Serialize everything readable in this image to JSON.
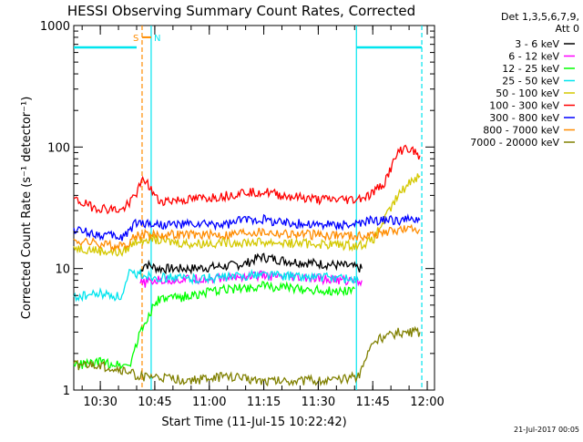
{
  "chart_data": {
    "type": "line",
    "title": "HESSI Observing Summary Count Rates, Corrected",
    "xlabel": "Start Time (11-Jul-15 10:22:42)",
    "ylabel": "Corrected Count Rate (s⁻¹ detector⁻¹)",
    "yscale": "log",
    "ylim": [
      1,
      1000
    ],
    "xlim": [
      "10:22:42",
      "12:02:00"
    ],
    "x_tick_labels": [
      "10:30",
      "10:45",
      "11:00",
      "11:15",
      "11:30",
      "11:45",
      "12:00"
    ],
    "y_tick_labels": [
      "1",
      "10",
      "100",
      "1000"
    ],
    "legend_header": [
      "Det 1,3,5,6,7,9,",
      "Att 0"
    ],
    "legend_position": "right",
    "date_stamp": "21-Jul-2017 00:05",
    "grid": false,
    "markers": [
      {
        "label": "S",
        "time": "10:41:30",
        "color": "#ff8c00",
        "style": "dashed"
      },
      {
        "label": "N",
        "time": "10:44:00",
        "color": "#00e5ee",
        "style": "solid"
      },
      {
        "label": "",
        "time": "11:40:30",
        "color": "#00e5ee",
        "style": "solid"
      },
      {
        "label": "",
        "time": "11:58:30",
        "color": "#00e5ee",
        "style": "dashed"
      }
    ],
    "night_bars": [
      {
        "start": "10:22:42",
        "end": "10:40:00",
        "level": 660
      },
      {
        "start": "11:40:30",
        "end": "11:58:30",
        "level": 660
      }
    ],
    "saa_bar": {
      "start": "10:41:30",
      "end": "10:44:00",
      "level": 800
    },
    "series": [
      {
        "name": "3 - 6 keV",
        "color": "#000000",
        "points": [
          [
            "10:41:00",
            9
          ],
          [
            "10:42:00",
            11
          ],
          [
            "10:46:00",
            10
          ],
          [
            "10:55:00",
            10
          ],
          [
            "11:05:00",
            10.5
          ],
          [
            "11:10:00",
            11
          ],
          [
            "11:14:00",
            12.5
          ],
          [
            "11:18:00",
            12
          ],
          [
            "11:22:00",
            11.5
          ],
          [
            "11:30:00",
            11
          ],
          [
            "11:38:00",
            10.5
          ],
          [
            "11:42:00",
            10
          ]
        ]
      },
      {
        "name": "6 - 12 keV",
        "color": "#ff00ff",
        "points": [
          [
            "10:41:00",
            7.5
          ],
          [
            "10:46:00",
            8
          ],
          [
            "10:55:00",
            8.2
          ],
          [
            "11:05:00",
            8.4
          ],
          [
            "11:14:00",
            8.8
          ],
          [
            "11:20:00",
            8.5
          ],
          [
            "11:30:00",
            8.2
          ],
          [
            "11:38:00",
            8
          ],
          [
            "11:42:00",
            8
          ]
        ]
      },
      {
        "name": "12 - 25 keV",
        "color": "#00ff00",
        "points": [
          [
            "10:22:42",
            1.6
          ],
          [
            "10:30:00",
            1.7
          ],
          [
            "10:38:00",
            1.6
          ],
          [
            "10:41:00",
            3
          ],
          [
            "10:44:00",
            4.5
          ],
          [
            "10:46:00",
            5.5
          ],
          [
            "10:55:00",
            6
          ],
          [
            "11:05:00",
            6.8
          ],
          [
            "11:15:00",
            7.2
          ],
          [
            "11:25:00",
            6.8
          ],
          [
            "11:35:00",
            6.5
          ],
          [
            "11:40:00",
            6.8
          ]
        ]
      },
      {
        "name": "25 - 50 keV",
        "color": "#00e5ee",
        "points": [
          [
            "10:22:42",
            5.8
          ],
          [
            "10:30:00",
            6.2
          ],
          [
            "10:36:00",
            5.8
          ],
          [
            "10:38:00",
            9
          ],
          [
            "10:41:00",
            9
          ],
          [
            "10:46:00",
            8.5
          ],
          [
            "10:55:00",
            8.3
          ],
          [
            "11:05:00",
            8.5
          ],
          [
            "11:15:00",
            9
          ],
          [
            "11:25:00",
            8.6
          ],
          [
            "11:35:00",
            8.4
          ],
          [
            "11:41:00",
            8
          ]
        ]
      },
      {
        "name": "50 - 100 keV",
        "color": "#d4c800",
        "points": [
          [
            "10:22:42",
            15
          ],
          [
            "10:30:00",
            14
          ],
          [
            "10:36:00",
            13.5
          ],
          [
            "10:40:00",
            17
          ],
          [
            "10:44:00",
            18
          ],
          [
            "10:46:00",
            17
          ],
          [
            "10:55:00",
            16
          ],
          [
            "11:05:00",
            16.5
          ],
          [
            "11:15:00",
            16.5
          ],
          [
            "11:30:00",
            16
          ],
          [
            "11:41:00",
            15.5
          ],
          [
            "11:45:00",
            17
          ],
          [
            "11:52:00",
            40
          ],
          [
            "11:56:00",
            55
          ],
          [
            "11:58:00",
            58
          ]
        ]
      },
      {
        "name": "100 - 300 keV",
        "color": "#ff0000",
        "points": [
          [
            "10:22:42",
            37
          ],
          [
            "10:28:00",
            32
          ],
          [
            "10:36:00",
            30
          ],
          [
            "10:40:00",
            42
          ],
          [
            "10:42:00",
            55
          ],
          [
            "10:46:00",
            36
          ],
          [
            "10:55:00",
            37
          ],
          [
            "11:05:00",
            40
          ],
          [
            "11:10:00",
            43
          ],
          [
            "11:15:00",
            43
          ],
          [
            "11:20:00",
            40
          ],
          [
            "11:30:00",
            37
          ],
          [
            "11:40:00",
            37
          ],
          [
            "11:44:00",
            40
          ],
          [
            "11:48:00",
            50
          ],
          [
            "11:52:00",
            90
          ],
          [
            "11:54:00",
            100
          ],
          [
            "11:58:00",
            85
          ]
        ]
      },
      {
        "name": "300 - 800 keV",
        "color": "#0000ff",
        "points": [
          [
            "10:22:42",
            21
          ],
          [
            "10:30:00",
            19
          ],
          [
            "10:36:00",
            18
          ],
          [
            "10:40:00",
            24
          ],
          [
            "10:46:00",
            23
          ],
          [
            "10:55:00",
            23
          ],
          [
            "11:05:00",
            23
          ],
          [
            "11:10:00",
            25.5
          ],
          [
            "11:15:00",
            25.5
          ],
          [
            "11:20:00",
            24
          ],
          [
            "11:30:00",
            23
          ],
          [
            "11:41:00",
            23
          ],
          [
            "11:45:00",
            25
          ],
          [
            "11:52:00",
            25
          ],
          [
            "11:58:00",
            25
          ]
        ]
      },
      {
        "name": "800 - 7000 keV",
        "color": "#ff8c00",
        "points": [
          [
            "10:22:42",
            17
          ],
          [
            "10:30:00",
            16
          ],
          [
            "10:36:00",
            15
          ],
          [
            "10:40:00",
            19
          ],
          [
            "10:46:00",
            19
          ],
          [
            "10:55:00",
            19
          ],
          [
            "11:05:00",
            19
          ],
          [
            "11:10:00",
            20
          ],
          [
            "11:15:00",
            20
          ],
          [
            "11:25:00",
            19
          ],
          [
            "11:35:00",
            19
          ],
          [
            "11:41:00",
            18.5
          ],
          [
            "11:45:00",
            19
          ],
          [
            "11:52:00",
            21
          ],
          [
            "11:58:00",
            21
          ]
        ]
      },
      {
        "name": "7000 - 20000 keV",
        "color": "#808000",
        "points": [
          [
            "10:22:42",
            1.6
          ],
          [
            "10:30:00",
            1.6
          ],
          [
            "10:38:00",
            1.4
          ],
          [
            "10:41:00",
            1.3
          ],
          [
            "10:55:00",
            1.2
          ],
          [
            "11:05:00",
            1.3
          ],
          [
            "11:15:00",
            1.2
          ],
          [
            "11:25:00",
            1.2
          ],
          [
            "11:35:00",
            1.2
          ],
          [
            "11:41:00",
            1.3
          ],
          [
            "11:45:00",
            2.5
          ],
          [
            "11:52:00",
            3
          ],
          [
            "11:58:00",
            3
          ]
        ]
      }
    ]
  }
}
